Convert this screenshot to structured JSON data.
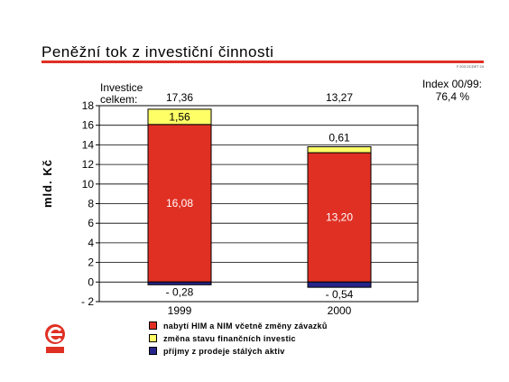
{
  "title": "Peněžní tok z investiční činnosti",
  "code": "F 203 OCDET 24",
  "index": {
    "label": "Index 00/99:",
    "value": "76,4 %"
  },
  "investice_label": [
    "Investice",
    "celkem:"
  ],
  "totals": [
    "17,36",
    "13,27"
  ],
  "colors": {
    "accent": "#e03024",
    "red": "#e03024",
    "yellow": "#ffff66",
    "blue": "#26248a"
  },
  "chart_data": {
    "type": "bar",
    "stacked": true,
    "categories": [
      "1999",
      "2000"
    ],
    "series": [
      {
        "name": "nabytí HIM a NIM včetně změny závazků",
        "color": "#e03024",
        "values": [
          16.08,
          13.2
        ],
        "labels": [
          "16,08",
          "13,20"
        ]
      },
      {
        "name": "změna stavu finančních investic",
        "color": "#ffff66",
        "values": [
          1.56,
          0.61
        ],
        "labels": [
          "1,56",
          "0,61"
        ]
      },
      {
        "name": "příjmy z prodeje stálých aktiv",
        "color": "#26248a",
        "values": [
          -0.28,
          -0.54
        ],
        "labels": [
          "- 0,28",
          "- 0,54"
        ]
      }
    ],
    "ylabel": "mld. Kč",
    "ylim": [
      -2,
      18
    ],
    "yticks": [
      18,
      16,
      14,
      12,
      10,
      8,
      6,
      4,
      2,
      0,
      -2
    ],
    "ytick_labels": [
      "18",
      "16",
      "14",
      "12",
      "10",
      "8",
      "6",
      "4",
      "2",
      "0",
      "- 2"
    ],
    "grid": true,
    "legend_position": "bottom"
  },
  "logo_text": "ČEZ"
}
